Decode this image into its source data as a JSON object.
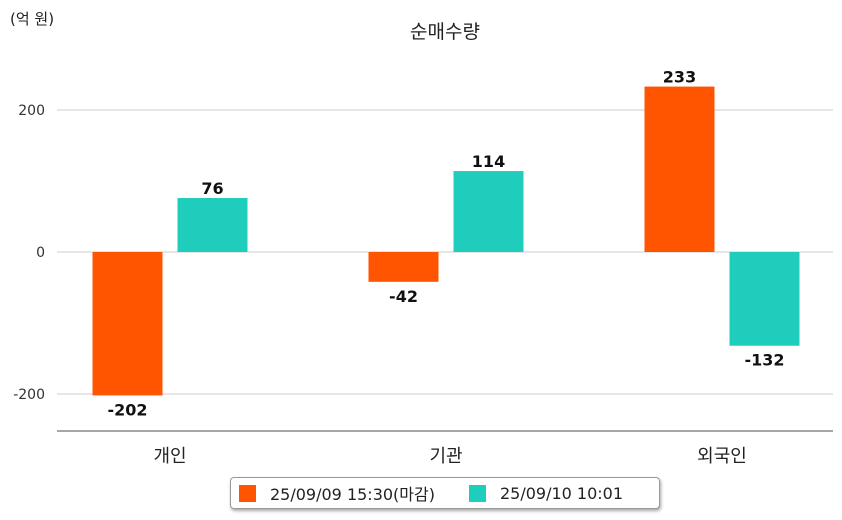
{
  "chart_data": {
    "type": "bar",
    "title": "순매수량",
    "unit_label": "(억 원)",
    "categories": [
      "개인",
      "기관",
      "외국인"
    ],
    "series": [
      {
        "name": "25/09/09 15:30(마감)",
        "color": "#ff5500",
        "values": [
          -202,
          -42,
          233
        ]
      },
      {
        "name": "25/09/10 10:01",
        "color": "#1ecdbb",
        "values": [
          76,
          114,
          -132
        ]
      }
    ],
    "yticks": [
      200,
      0,
      -200
    ],
    "ylim": [
      -255,
      300
    ],
    "grid": true,
    "legend_position": "bottom"
  }
}
